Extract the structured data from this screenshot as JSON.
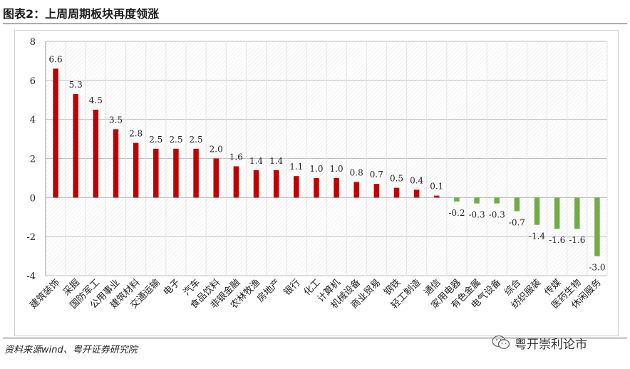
{
  "title": "图表2：上周周期板块再度领涨",
  "source": "资料来源wind、粤开证券研究院",
  "watermark": {
    "text": "粤开崇利论市",
    "icon": "wechat-icon"
  },
  "colors": {
    "positive": "#c00000",
    "negative": "#70ad47",
    "grid": "#bfbfbf"
  },
  "chart_data": {
    "type": "bar",
    "categories": [
      "建筑装饰",
      "采掘",
      "国防军工",
      "公用事业",
      "建筑材料",
      "交通运输",
      "电子",
      "汽车",
      "食品饮料",
      "非银金融",
      "农林牧渔",
      "房地产",
      "银行",
      "化工",
      "计算机",
      "机械设备",
      "商业贸易",
      "钢铁",
      "轻工制造",
      "通信",
      "家用电器",
      "有色金属",
      "电气设备",
      "综合",
      "纺织服装",
      "传媒",
      "医药生物",
      "休闲服务"
    ],
    "values": [
      6.6,
      5.3,
      4.5,
      3.5,
      2.8,
      2.5,
      2.5,
      2.5,
      2.0,
      1.6,
      1.4,
      1.4,
      1.1,
      1.0,
      1.0,
      0.8,
      0.7,
      0.5,
      0.4,
      0.1,
      -0.2,
      -0.3,
      -0.3,
      -0.7,
      -1.4,
      -1.6,
      -1.6,
      -3.0
    ],
    "value_labels": [
      "6.6",
      "5.3",
      "4.5",
      "3.5",
      "2.8",
      "2.5",
      "2.5",
      "2.5",
      "2.0",
      "1.6",
      "1.4",
      "1.4",
      "1.1",
      "1.0",
      "1.0",
      "0.8",
      "0.7",
      "0.5",
      "0.4",
      "0.1",
      "-0.2",
      "-0.3",
      "-0.3",
      "-0.7",
      "-1.4",
      "-1.6",
      "-1.6",
      "-3.0"
    ],
    "yticks": [
      "-4",
      "-2",
      "0",
      "2",
      "4",
      "6",
      "8"
    ],
    "ylim": [
      -4,
      8
    ],
    "grid": true,
    "legend": "none"
  }
}
